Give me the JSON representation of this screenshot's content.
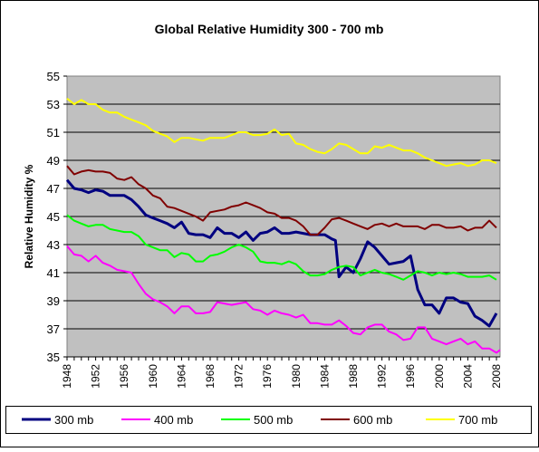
{
  "chart_data": {
    "type": "line",
    "title": "Global Relative Humidity 300 - 700 mb",
    "ylabel": "Relative Humidity %",
    "xlabel": "",
    "ylim": [
      35,
      55
    ],
    "yticks": [
      35,
      37,
      39,
      41,
      43,
      45,
      47,
      49,
      51,
      53,
      55
    ],
    "xlim": [
      1948,
      2008.5
    ],
    "xticks": [
      1948,
      1952,
      1956,
      1960,
      1964,
      1968,
      1972,
      1976,
      1980,
      1984,
      1988,
      1992,
      1996,
      2000,
      2004,
      2008
    ],
    "grid": "horizontal",
    "legend_position": "bottom",
    "plot_background": "#c0c0c0",
    "series": [
      {
        "name": "300 mb",
        "color": "#000080",
        "points": [
          [
            1948,
            47.6
          ],
          [
            1949,
            47.0
          ],
          [
            1950,
            46.9
          ],
          [
            1951,
            46.7
          ],
          [
            1952,
            46.9
          ],
          [
            1953,
            46.8
          ],
          [
            1954,
            46.5
          ],
          [
            1955,
            46.5
          ],
          [
            1956,
            46.5
          ],
          [
            1957,
            46.2
          ],
          [
            1958,
            45.7
          ],
          [
            1959,
            45.1
          ],
          [
            1960,
            44.9
          ],
          [
            1961,
            44.7
          ],
          [
            1962,
            44.5
          ],
          [
            1963,
            44.2
          ],
          [
            1964,
            44.6
          ],
          [
            1965,
            43.8
          ],
          [
            1966,
            43.7
          ],
          [
            1967,
            43.7
          ],
          [
            1968,
            43.5
          ],
          [
            1969,
            44.2
          ],
          [
            1970,
            43.8
          ],
          [
            1971,
            43.8
          ],
          [
            1972,
            43.5
          ],
          [
            1973,
            43.9
          ],
          [
            1974,
            43.3
          ],
          [
            1975,
            43.8
          ],
          [
            1976,
            43.9
          ],
          [
            1977,
            44.2
          ],
          [
            1978,
            43.8
          ],
          [
            1979,
            43.8
          ],
          [
            1980,
            43.9
          ],
          [
            1981,
            43.8
          ],
          [
            1982,
            43.7
          ],
          [
            1983,
            43.7
          ],
          [
            1984,
            43.7
          ],
          [
            1985,
            43.4
          ],
          [
            1985.5,
            43.3
          ],
          [
            1986,
            40.7
          ],
          [
            1987,
            41.4
          ],
          [
            1988,
            41.0
          ],
          [
            1989,
            42.0
          ],
          [
            1990,
            43.2
          ],
          [
            1991,
            42.8
          ],
          [
            1992,
            42.2
          ],
          [
            1993,
            41.6
          ],
          [
            1994,
            41.7
          ],
          [
            1995,
            41.8
          ],
          [
            1996,
            42.2
          ],
          [
            1997,
            39.8
          ],
          [
            1998,
            38.7
          ],
          [
            1999,
            38.7
          ],
          [
            2000,
            38.1
          ],
          [
            2001,
            39.2
          ],
          [
            2002,
            39.2
          ],
          [
            2003,
            38.9
          ],
          [
            2004,
            38.8
          ],
          [
            2005,
            37.9
          ],
          [
            2006,
            37.6
          ],
          [
            2007,
            37.2
          ],
          [
            2008,
            38.1
          ]
        ]
      },
      {
        "name": "400 mb",
        "color": "#ff00ff",
        "points": [
          [
            1948,
            42.9
          ],
          [
            1949,
            42.3
          ],
          [
            1950,
            42.2
          ],
          [
            1951,
            41.8
          ],
          [
            1952,
            42.2
          ],
          [
            1953,
            41.7
          ],
          [
            1954,
            41.5
          ],
          [
            1955,
            41.2
          ],
          [
            1956,
            41.1
          ],
          [
            1957,
            41.0
          ],
          [
            1958,
            40.2
          ],
          [
            1959,
            39.5
          ],
          [
            1960,
            39.1
          ],
          [
            1961,
            38.9
          ],
          [
            1962,
            38.6
          ],
          [
            1963,
            38.1
          ],
          [
            1964,
            38.6
          ],
          [
            1965,
            38.6
          ],
          [
            1966,
            38.1
          ],
          [
            1967,
            38.1
          ],
          [
            1968,
            38.2
          ],
          [
            1969,
            38.9
          ],
          [
            1970,
            38.8
          ],
          [
            1971,
            38.7
          ],
          [
            1972,
            38.8
          ],
          [
            1973,
            38.9
          ],
          [
            1974,
            38.4
          ],
          [
            1975,
            38.3
          ],
          [
            1976,
            38.0
          ],
          [
            1977,
            38.3
          ],
          [
            1978,
            38.1
          ],
          [
            1979,
            38.0
          ],
          [
            1980,
            37.8
          ],
          [
            1981,
            38.0
          ],
          [
            1982,
            37.4
          ],
          [
            1983,
            37.4
          ],
          [
            1984,
            37.3
          ],
          [
            1985,
            37.3
          ],
          [
            1986,
            37.6
          ],
          [
            1987,
            37.2
          ],
          [
            1988,
            36.7
          ],
          [
            1989,
            36.6
          ],
          [
            1990,
            37.1
          ],
          [
            1991,
            37.3
          ],
          [
            1992,
            37.3
          ],
          [
            1993,
            36.8
          ],
          [
            1994,
            36.6
          ],
          [
            1995,
            36.2
          ],
          [
            1996,
            36.3
          ],
          [
            1997,
            37.1
          ],
          [
            1998,
            37.1
          ],
          [
            1999,
            36.3
          ],
          [
            2000,
            36.1
          ],
          [
            2001,
            35.9
          ],
          [
            2002,
            36.1
          ],
          [
            2003,
            36.3
          ],
          [
            2004,
            35.9
          ],
          [
            2005,
            36.1
          ],
          [
            2006,
            35.6
          ],
          [
            2007,
            35.6
          ],
          [
            2008,
            35.3
          ],
          [
            2008.5,
            35.5
          ]
        ]
      },
      {
        "name": "500 mb",
        "color": "#00ff00",
        "points": [
          [
            1948,
            45.1
          ],
          [
            1949,
            44.7
          ],
          [
            1950,
            44.5
          ],
          [
            1951,
            44.3
          ],
          [
            1952,
            44.4
          ],
          [
            1953,
            44.4
          ],
          [
            1954,
            44.1
          ],
          [
            1955,
            44.0
          ],
          [
            1956,
            43.9
          ],
          [
            1957,
            43.9
          ],
          [
            1958,
            43.6
          ],
          [
            1959,
            43.0
          ],
          [
            1960,
            42.8
          ],
          [
            1961,
            42.6
          ],
          [
            1962,
            42.6
          ],
          [
            1963,
            42.1
          ],
          [
            1964,
            42.4
          ],
          [
            1965,
            42.3
          ],
          [
            1966,
            41.8
          ],
          [
            1967,
            41.8
          ],
          [
            1968,
            42.2
          ],
          [
            1969,
            42.3
          ],
          [
            1970,
            42.5
          ],
          [
            1971,
            42.8
          ],
          [
            1972,
            43.0
          ],
          [
            1973,
            42.8
          ],
          [
            1974,
            42.5
          ],
          [
            1975,
            41.8
          ],
          [
            1976,
            41.7
          ],
          [
            1977,
            41.7
          ],
          [
            1978,
            41.6
          ],
          [
            1979,
            41.8
          ],
          [
            1980,
            41.6
          ],
          [
            1981,
            41.1
          ],
          [
            1982,
            40.8
          ],
          [
            1983,
            40.8
          ],
          [
            1984,
            40.9
          ],
          [
            1985,
            41.2
          ],
          [
            1986,
            41.4
          ],
          [
            1987,
            41.5
          ],
          [
            1988,
            41.4
          ],
          [
            1989,
            40.8
          ],
          [
            1990,
            41.0
          ],
          [
            1991,
            41.2
          ],
          [
            1992,
            41.0
          ],
          [
            1993,
            40.9
          ],
          [
            1994,
            40.7
          ],
          [
            1995,
            40.5
          ],
          [
            1996,
            40.8
          ],
          [
            1997,
            41.1
          ],
          [
            1998,
            41.0
          ],
          [
            1999,
            40.8
          ],
          [
            2000,
            41.0
          ],
          [
            2001,
            40.9
          ],
          [
            2002,
            41.0
          ],
          [
            2003,
            40.9
          ],
          [
            2004,
            40.7
          ],
          [
            2005,
            40.7
          ],
          [
            2006,
            40.7
          ],
          [
            2007,
            40.8
          ],
          [
            2008,
            40.5
          ]
        ]
      },
      {
        "name": "600 mb",
        "color": "#800000",
        "points": [
          [
            1948,
            48.6
          ],
          [
            1949,
            48.0
          ],
          [
            1950,
            48.2
          ],
          [
            1951,
            48.3
          ],
          [
            1952,
            48.2
          ],
          [
            1953,
            48.2
          ],
          [
            1954,
            48.1
          ],
          [
            1955,
            47.7
          ],
          [
            1956,
            47.6
          ],
          [
            1957,
            47.8
          ],
          [
            1958,
            47.3
          ],
          [
            1959,
            47.0
          ],
          [
            1960,
            46.5
          ],
          [
            1961,
            46.3
          ],
          [
            1962,
            45.7
          ],
          [
            1963,
            45.6
          ],
          [
            1964,
            45.4
          ],
          [
            1965,
            45.2
          ],
          [
            1966,
            45.0
          ],
          [
            1967,
            44.7
          ],
          [
            1968,
            45.3
          ],
          [
            1969,
            45.4
          ],
          [
            1970,
            45.5
          ],
          [
            1971,
            45.7
          ],
          [
            1972,
            45.8
          ],
          [
            1973,
            46.0
          ],
          [
            1974,
            45.8
          ],
          [
            1975,
            45.6
          ],
          [
            1976,
            45.3
          ],
          [
            1977,
            45.2
          ],
          [
            1978,
            44.9
          ],
          [
            1979,
            44.9
          ],
          [
            1980,
            44.7
          ],
          [
            1981,
            44.3
          ],
          [
            1982,
            43.7
          ],
          [
            1983,
            43.7
          ],
          [
            1984,
            44.2
          ],
          [
            1985,
            44.8
          ],
          [
            1986,
            44.9
          ],
          [
            1987,
            44.7
          ],
          [
            1988,
            44.5
          ],
          [
            1989,
            44.3
          ],
          [
            1990,
            44.1
          ],
          [
            1991,
            44.4
          ],
          [
            1992,
            44.5
          ],
          [
            1993,
            44.3
          ],
          [
            1994,
            44.5
          ],
          [
            1995,
            44.3
          ],
          [
            1996,
            44.3
          ],
          [
            1997,
            44.3
          ],
          [
            1998,
            44.1
          ],
          [
            1999,
            44.4
          ],
          [
            2000,
            44.4
          ],
          [
            2001,
            44.2
          ],
          [
            2002,
            44.2
          ],
          [
            2003,
            44.3
          ],
          [
            2004,
            44.0
          ],
          [
            2005,
            44.2
          ],
          [
            2006,
            44.2
          ],
          [
            2007,
            44.7
          ],
          [
            2008,
            44.2
          ]
        ]
      },
      {
        "name": "700 mb",
        "color": "#ffff00",
        "points": [
          [
            1948,
            53.4
          ],
          [
            1949,
            53.0
          ],
          [
            1950,
            53.3
          ],
          [
            1951,
            53.0
          ],
          [
            1952,
            53.0
          ],
          [
            1953,
            52.6
          ],
          [
            1954,
            52.4
          ],
          [
            1955,
            52.4
          ],
          [
            1956,
            52.1
          ],
          [
            1957,
            51.9
          ],
          [
            1958,
            51.7
          ],
          [
            1959,
            51.5
          ],
          [
            1960,
            51.1
          ],
          [
            1961,
            50.9
          ],
          [
            1962,
            50.7
          ],
          [
            1963,
            50.3
          ],
          [
            1964,
            50.6
          ],
          [
            1965,
            50.6
          ],
          [
            1966,
            50.5
          ],
          [
            1967,
            50.4
          ],
          [
            1968,
            50.6
          ],
          [
            1969,
            50.6
          ],
          [
            1970,
            50.6
          ],
          [
            1971,
            50.8
          ],
          [
            1972,
            51.0
          ],
          [
            1973,
            51.0
          ],
          [
            1974,
            50.8
          ],
          [
            1975,
            50.8
          ],
          [
            1976,
            50.9
          ],
          [
            1977,
            51.2
          ],
          [
            1978,
            50.8
          ],
          [
            1979,
            50.9
          ],
          [
            1980,
            50.2
          ],
          [
            1981,
            50.1
          ],
          [
            1982,
            49.8
          ],
          [
            1983,
            49.6
          ],
          [
            1984,
            49.5
          ],
          [
            1985,
            49.8
          ],
          [
            1986,
            50.2
          ],
          [
            1987,
            50.1
          ],
          [
            1988,
            49.8
          ],
          [
            1989,
            49.5
          ],
          [
            1990,
            49.5
          ],
          [
            1991,
            50.0
          ],
          [
            1992,
            49.9
          ],
          [
            1993,
            50.1
          ],
          [
            1994,
            49.9
          ],
          [
            1995,
            49.7
          ],
          [
            1996,
            49.7
          ],
          [
            1997,
            49.5
          ],
          [
            1998,
            49.2
          ],
          [
            1999,
            49.0
          ],
          [
            2000,
            48.8
          ],
          [
            2001,
            48.6
          ],
          [
            2002,
            48.7
          ],
          [
            2003,
            48.8
          ],
          [
            2004,
            48.6
          ],
          [
            2005,
            48.7
          ],
          [
            2006,
            49.0
          ],
          [
            2007,
            49.0
          ],
          [
            2008,
            48.8
          ]
        ]
      }
    ]
  }
}
